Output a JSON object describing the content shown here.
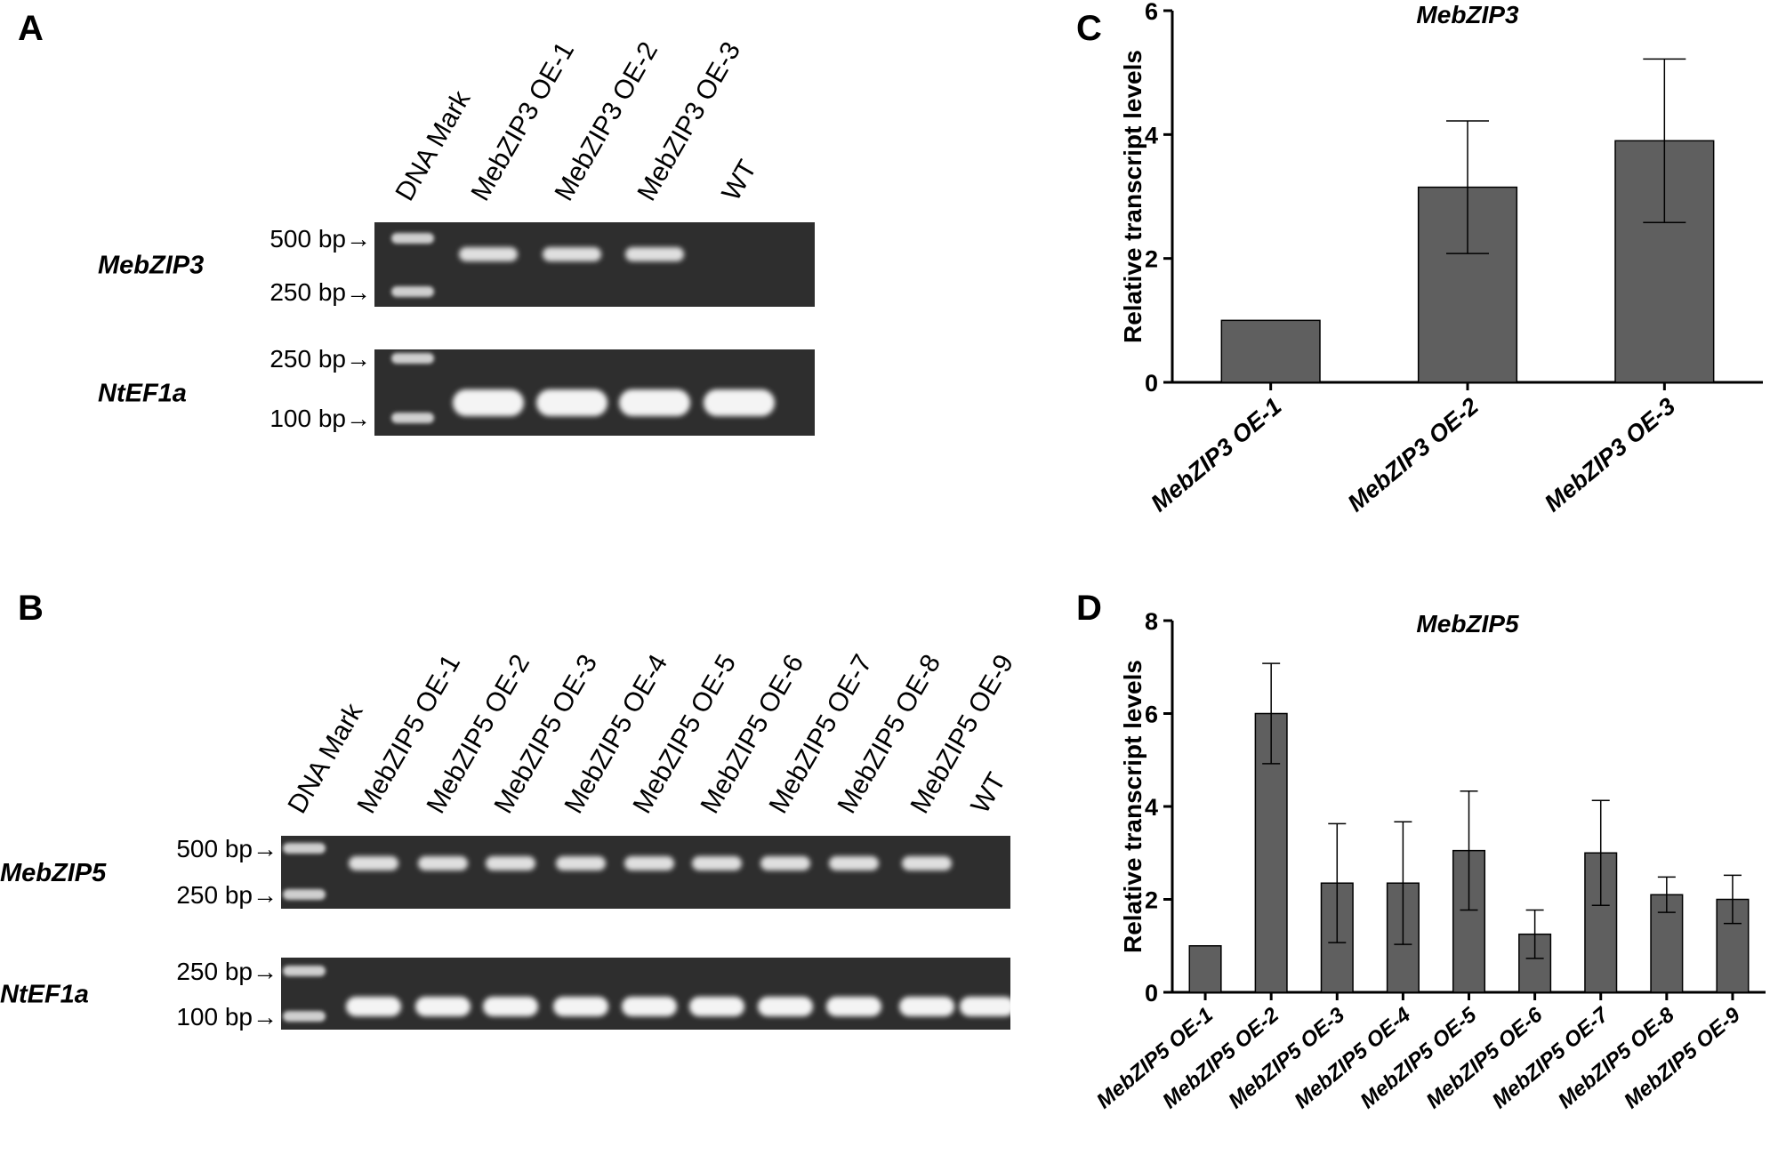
{
  "panels": {
    "A": "A",
    "B": "B",
    "C": "C",
    "D": "D"
  },
  "gel_A": {
    "lanes": [
      "DNA Mark",
      "MebZIP3 OE-1",
      "MebZIP3 OE-2",
      "MebZIP3 OE-3",
      "WT"
    ],
    "rows": [
      {
        "gene": "MebZIP3",
        "markers": [
          "500 bp→",
          "250 bp→"
        ],
        "bands": [
          1,
          1,
          1,
          0
        ]
      },
      {
        "gene": "NtEF1a",
        "markers": [
          "250 bp→",
          "100 bp→"
        ],
        "bands": [
          1,
          1,
          1,
          1
        ]
      }
    ]
  },
  "gel_B": {
    "lanes": [
      "DNA Mark",
      "MebZIP5 OE-1",
      "MebZIP5 OE-2",
      "MebZIP5 OE-3",
      "MebZIP5 OE-4",
      "MebZIP5 OE-5",
      "MebZIP5 OE-6",
      "MebZIP5 OE-7",
      "MebZIP5 OE-8",
      "MebZIP5 OE-9",
      "WT"
    ],
    "rows": [
      {
        "gene": "MebZIP5",
        "markers": [
          "500 bp→",
          "250 bp→"
        ],
        "bands": [
          1,
          1,
          1,
          1,
          1,
          1,
          1,
          1,
          1,
          0
        ]
      },
      {
        "gene": "NtEF1a",
        "markers": [
          "250 bp→",
          "100 bp→"
        ],
        "bands": [
          1,
          1,
          1,
          1,
          1,
          1,
          1,
          1,
          1,
          1
        ]
      }
    ]
  },
  "chart_data": [
    {
      "type": "bar",
      "title": "MebZIP3",
      "ylabel": "Relative transcript levels",
      "xlabel": "",
      "categories": [
        "MebZIP3 OE-1",
        "MebZIP3 OE-2",
        "MebZIP3 OE-3"
      ],
      "values": [
        1.0,
        3.15,
        3.9
      ],
      "errors": [
        0,
        1.07,
        1.32
      ],
      "ylim": [
        0,
        6
      ],
      "yticks": [
        0,
        2,
        4,
        6
      ],
      "bar_color": "#5f5f5f"
    },
    {
      "type": "bar",
      "title": "MebZIP5",
      "ylabel": "Relative transcript levels",
      "xlabel": "",
      "categories": [
        "MebZIP5 OE-1",
        "MebZIP5 OE-2",
        "MebZIP5 OE-3",
        "MebZIP5 OE-4",
        "MebZIP5 OE-5",
        "MebZIP5 OE-6",
        "MebZIP5 OE-7",
        "MebZIP5 OE-8",
        "MebZIP5 OE-9"
      ],
      "values": [
        1.0,
        6.0,
        2.35,
        2.35,
        3.05,
        1.25,
        3.0,
        2.1,
        2.0
      ],
      "errors": [
        0,
        1.08,
        1.28,
        1.32,
        1.28,
        0.52,
        1.13,
        0.38,
        0.52
      ],
      "ylim": [
        0,
        8
      ],
      "yticks": [
        0,
        2,
        4,
        6,
        8
      ],
      "bar_color": "#5f5f5f"
    }
  ]
}
